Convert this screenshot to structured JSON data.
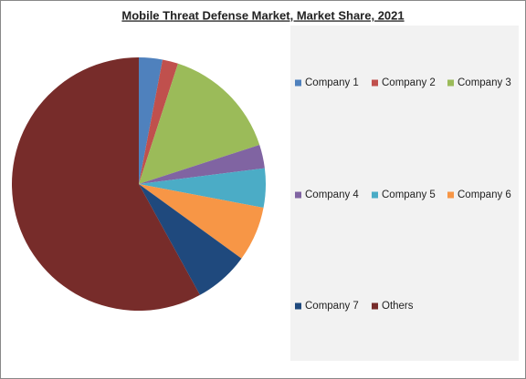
{
  "chart_data": {
    "type": "pie",
    "title": "Mobile Threat Defense Market, Market Share, 2021",
    "categories": [
      "Company 1",
      "Company 2",
      "Company 3",
      "Company 4",
      "Company 5",
      "Company 6",
      "Company 7",
      "Others"
    ],
    "values": [
      3,
      2,
      15,
      3,
      5,
      7,
      7,
      58
    ],
    "colors": [
      "#4f81bd",
      "#c0504d",
      "#9bbb59",
      "#8064a2",
      "#4bacc6",
      "#f79646",
      "#1f497d",
      "#772c2a"
    ],
    "legend": "right"
  }
}
